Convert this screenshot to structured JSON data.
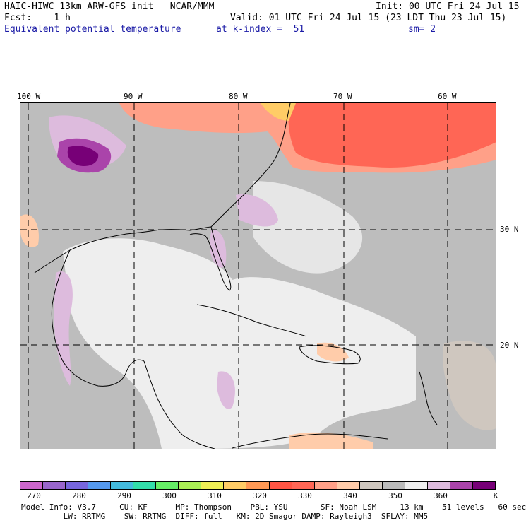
{
  "header": {
    "title_left": "HAIC-HIWC 13km ARW-GFS init   NCAR/MMM",
    "init": "Init: 00 UTC Fri 24 Jul 15",
    "fcst": "Fcst:    1 h",
    "valid": "Valid: 01 UTC Fri 24 Jul 15 (23 LDT Thu 23 Jul 15)",
    "field": "Equivalent potential temperature",
    "level": "at k-index =  51",
    "smooth": "sm= 2"
  },
  "map": {
    "lon_labels": [
      "100 W",
      "90 W",
      "80 W",
      "70 W",
      "60 W"
    ],
    "lat_labels": [
      "30 N",
      "20 N"
    ]
  },
  "colorbar": {
    "colors": [
      "#cc66cc",
      "#9966cc",
      "#7766dd",
      "#5599ee",
      "#44bbdd",
      "#33ddaa",
      "#66ee66",
      "#aaee55",
      "#eeee55",
      "#ffcc66",
      "#ff9955",
      "#ff5544",
      "#ff6655",
      "#ffa088",
      "#ffccaa",
      "#cfc7bf",
      "#bbbbbb",
      "#eeeeee",
      "#ddbbdd",
      "#aa44aa",
      "#770077"
    ],
    "labels": [
      "270",
      "280",
      "290",
      "300",
      "310",
      "320",
      "330",
      "340",
      "350",
      "360"
    ],
    "unit": "K"
  },
  "footer": {
    "line1": "Model Info: V3.7     CU: KF      MP: Thompson    PBL: YSU       SF: Noah LSM     13 km    51 levels   60 sec",
    "line2": "         LW: RRTMG    SW: RRTMG  DIFF: full   KM: 2D Smagor DAMP: Rayleigh3  SFLAY: MM5"
  }
}
